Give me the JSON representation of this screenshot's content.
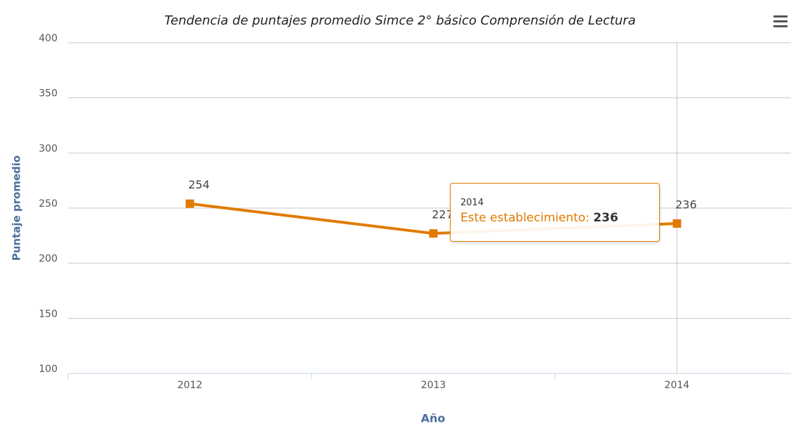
{
  "chart_data": {
    "type": "line",
    "title": "Tendencia de puntajes promedio Simce 2° básico Comprensión de Lectura",
    "y_label": "Puntaje promedio",
    "x_label": "Año",
    "categories": [
      "2012",
      "2013",
      "2014"
    ],
    "series": [
      {
        "name": "Este establecimiento",
        "color": "#e07b00",
        "values": [
          254,
          227,
          236
        ]
      }
    ],
    "ylim": [
      100,
      400
    ],
    "yticks": [
      100,
      150,
      200,
      250,
      300,
      350,
      400
    ],
    "grid": true
  }
}
